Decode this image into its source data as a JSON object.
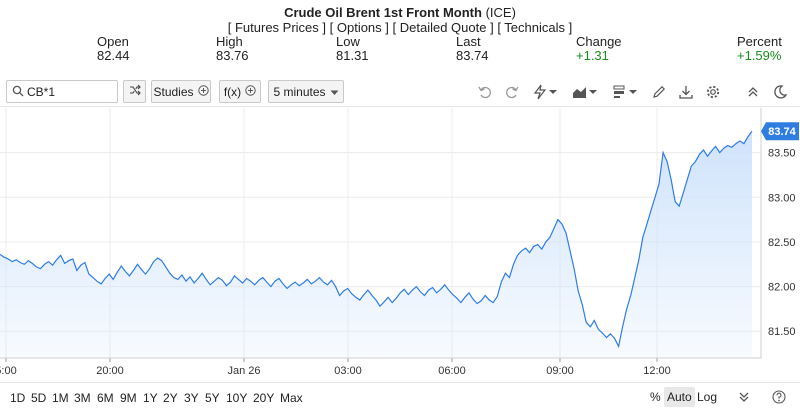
{
  "header": {
    "title_name": "Crude Oil Brent 1st Front Month",
    "title_exchange": "(ICE)",
    "links": [
      "[ Futures Prices ]",
      "[ Options ]",
      "[ Detailed Quote ]",
      "[ Technicals ]"
    ],
    "stats": [
      {
        "label": "Open",
        "value": "82.44"
      },
      {
        "label": "High",
        "value": "83.76"
      },
      {
        "label": "Low",
        "value": "81.31"
      },
      {
        "label": "Last",
        "value": "83.74"
      },
      {
        "label": "Change",
        "value": "+1.31"
      },
      {
        "label": "Percent",
        "value": "+1.59%"
      }
    ],
    "positive_color": "#1a8c1a"
  },
  "toolbar": {
    "symbol_value": "CB*1",
    "studies_label": "Studies",
    "fx_label": "f(x)",
    "interval_label": "5 minutes",
    "icons": [
      "search-icon",
      "compare-icon",
      "plus-circle-icon",
      "chevron-down-icon",
      "undo-icon",
      "redo-icon",
      "lightning-icon",
      "area-chart-icon",
      "bar-style-icon",
      "pencil-icon",
      "download-icon",
      "gear-icon",
      "collapse-icon",
      "dark-mode-icon"
    ]
  },
  "chart_data": {
    "type": "area",
    "x_tick_labels": [
      "5:00",
      "20:00",
      "Jan 26",
      "03:00",
      "06:00",
      "09:00",
      "12:00"
    ],
    "y_tick_labels": [
      "81.50",
      "82.00",
      "82.50",
      "83.00",
      "83.50"
    ],
    "ylim": [
      81.2,
      84.0
    ],
    "last_price": "83.74",
    "line_color": "#2f7de1",
    "fill_color": "#cfe3fb",
    "grid": true,
    "y": [
      82.36,
      82.33,
      82.31,
      82.28,
      82.3,
      82.27,
      82.25,
      82.29,
      82.26,
      82.22,
      82.2,
      82.25,
      82.28,
      82.24,
      82.3,
      82.35,
      82.26,
      82.29,
      82.31,
      82.18,
      82.24,
      82.27,
      82.14,
      82.1,
      82.06,
      82.03,
      82.09,
      82.14,
      82.08,
      82.16,
      82.23,
      82.17,
      82.12,
      82.18,
      82.25,
      82.19,
      82.14,
      82.2,
      82.28,
      82.32,
      82.29,
      82.22,
      82.15,
      82.1,
      82.08,
      82.13,
      82.06,
      82.11,
      82.04,
      82.09,
      82.15,
      82.08,
      82.02,
      82.06,
      82.1,
      82.07,
      82.01,
      82.05,
      82.12,
      82.08,
      82.04,
      82.09,
      82.06,
      82.02,
      82.07,
      82.1,
      82.05,
      82.0,
      82.06,
      82.09,
      82.03,
      81.98,
      82.02,
      82.05,
      82.01,
      82.04,
      82.08,
      82.03,
      82.06,
      82.1,
      82.05,
      82.02,
      82.07,
      82.0,
      81.9,
      81.95,
      81.98,
      81.92,
      81.88,
      81.85,
      81.91,
      81.96,
      81.9,
      81.85,
      81.78,
      81.83,
      81.88,
      81.82,
      81.87,
      81.93,
      81.97,
      81.91,
      81.96,
      82.0,
      81.94,
      81.9,
      81.96,
      81.99,
      81.93,
      81.97,
      82.02,
      81.96,
      81.91,
      81.87,
      81.82,
      81.88,
      81.93,
      81.86,
      81.81,
      81.84,
      81.9,
      81.85,
      81.82,
      81.89,
      82.05,
      82.15,
      82.1,
      82.25,
      82.35,
      82.4,
      82.43,
      82.38,
      82.45,
      82.47,
      82.42,
      82.5,
      82.55,
      82.65,
      82.75,
      82.7,
      82.6,
      82.4,
      82.2,
      81.95,
      81.8,
      81.6,
      81.55,
      81.62,
      81.52,
      81.48,
      81.43,
      81.47,
      81.42,
      81.33,
      81.55,
      81.75,
      81.9,
      82.1,
      82.3,
      82.55,
      82.7,
      82.85,
      83.0,
      83.15,
      83.5,
      83.4,
      83.2,
      82.95,
      82.9,
      83.05,
      83.2,
      83.35,
      83.4,
      83.48,
      83.53,
      83.46,
      83.52,
      83.57,
      83.5,
      83.55,
      83.58,
      83.56,
      83.6,
      83.63,
      83.6,
      83.68,
      83.74
    ]
  },
  "bottombar": {
    "ranges": [
      "1D",
      "5D",
      "1M",
      "3M",
      "6M",
      "9M",
      "1Y",
      "2Y",
      "3Y",
      "5Y",
      "10Y",
      "20Y",
      "Max"
    ],
    "percent_label": "%",
    "auto_label": "Auto",
    "log_label": "Log"
  }
}
